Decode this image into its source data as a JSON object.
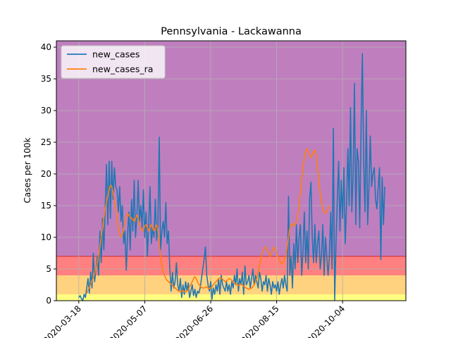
{
  "chart_data": {
    "type": "line",
    "title": "Pennsylvania - Lackawanna",
    "xlabel": "",
    "ylabel": "Cases per 100k",
    "ylim": [
      0,
      41
    ],
    "xlim": [
      "2020-03-01",
      "2020-11-21"
    ],
    "yticks": [
      0,
      5,
      10,
      15,
      20,
      25,
      30,
      35,
      40
    ],
    "xticks": [
      "2020-03-18",
      "2020-05-07",
      "2020-06-26",
      "2020-08-15",
      "2020-10-04"
    ],
    "grid": true,
    "legend": "top-left",
    "bands": [
      {
        "from": 0,
        "to": 1,
        "color": "#ffff80"
      },
      {
        "from": 1,
        "to": 4,
        "color": "#ffd27f"
      },
      {
        "from": 4,
        "to": 7,
        "color": "#ff8080"
      },
      {
        "from": 7,
        "to": 41,
        "color": "#bf7fbf"
      }
    ],
    "series": [
      {
        "name": "new_cases",
        "color": "#1f77b4",
        "start": "2020-03-18",
        "values": [
          0.5,
          0.8,
          0.3,
          0.0,
          1.0,
          0.5,
          2.0,
          3.5,
          1.2,
          4.5,
          2.0,
          7.5,
          3.0,
          5.0,
          7.0,
          4.0,
          11.0,
          6.0,
          13.0,
          8.0,
          14.5,
          21.5,
          12.0,
          22.0,
          13.0,
          22.0,
          16.0,
          21.0,
          18.0,
          17.5,
          14.0,
          18.0,
          12.5,
          15.0,
          9.0,
          11.0,
          4.8,
          10.5,
          14.0,
          8.0,
          16.0,
          11.0,
          19.0,
          10.0,
          13.0,
          19.0,
          12.5,
          15.0,
          11.5,
          17.5,
          10.0,
          14.0,
          7.0,
          12.0,
          18.0,
          9.0,
          11.5,
          10.0,
          16.0,
          9.5,
          12.0,
          25.8,
          8.0,
          11.0,
          12.5,
          10.0,
          15.5,
          9.0,
          11.0,
          5.0,
          1.5,
          4.5,
          2.0,
          3.0,
          6.0,
          2.5,
          1.5,
          3.5,
          0.5,
          2.5,
          1.0,
          3.0,
          1.5,
          2.8,
          0.5,
          1.5,
          2.5,
          0.8,
          1.8,
          0.5,
          1.5,
          1.2,
          2.0,
          3.5,
          5.0,
          6.5,
          8.5,
          4.0,
          2.5,
          1.5,
          3.0,
          0.2,
          2.0,
          1.0,
          2.5,
          1.5,
          3.5,
          1.0,
          4.0,
          2.5,
          2.0,
          1.5,
          3.0,
          1.5,
          2.5,
          1.0,
          3.0,
          2.0,
          4.0,
          2.5,
          5.0,
          1.5,
          3.5,
          2.5,
          4.5,
          1.0,
          5.5,
          2.5,
          3.0,
          4.0,
          2.0,
          3.5,
          5.0,
          2.5,
          4.0,
          3.0,
          2.0,
          4.5,
          3.5,
          1.5,
          3.0,
          2.5,
          4.0,
          1.5,
          3.5,
          2.5,
          1.0,
          3.0,
          2.0,
          2.5,
          1.5,
          3.0,
          1.0,
          2.5,
          3.5,
          2.0,
          4.0,
          2.5,
          1.5,
          16.5,
          4.0,
          7.0,
          2.0,
          9.0,
          5.0,
          12.0,
          6.0,
          10.0,
          12.0,
          4.0,
          8.0,
          14.0,
          6.0,
          11.0,
          5.0,
          16.0,
          18.7,
          10.0,
          6.0,
          12.0,
          6.0,
          9.0,
          11.0,
          5.0,
          7.0,
          12.0,
          4.0,
          10.0,
          7.0,
          4.0,
          7.0,
          14.0,
          5.0,
          27.2,
          0.1,
          9.0,
          16.0,
          22.0,
          11.0,
          19.0,
          13.0,
          21.0,
          9.0,
          15.0,
          24.0,
          15.0,
          30.5,
          14.0,
          20.0,
          34.3,
          12.0,
          24.0,
          22.0,
          11.5,
          27.0,
          39.0,
          22.0,
          14.0,
          30.0,
          12.0,
          18.0,
          26.0,
          18.0,
          20.0,
          21.0,
          16.0,
          14.5,
          18.0,
          21.0,
          6.5,
          19.5,
          12.0,
          18.0
        ]
      },
      {
        "name": "new_cases_ra",
        "color": "#ff7f0e",
        "start": "2020-03-24",
        "values": [
          1.2,
          1.6,
          2.1,
          2.6,
          3.2,
          3.6,
          4.3,
          5.0,
          6.0,
          7.2,
          8.5,
          10.0,
          11.5,
          13.0,
          14.5,
          15.5,
          16.5,
          17.5,
          18.2,
          18.0,
          17.0,
          16.0,
          14.5,
          13.0,
          11.5,
          10.5,
          10.0,
          10.5,
          11.5,
          12.5,
          13.5,
          13.8,
          13.5,
          13.2,
          13.0,
          12.8,
          12.5,
          13.0,
          13.5,
          13.0,
          12.0,
          11.5,
          11.0,
          11.2,
          11.8,
          12.0,
          11.5,
          11.0,
          11.5,
          12.0,
          11.5,
          11.0,
          11.5,
          12.0,
          11.0,
          9.0,
          7.0,
          5.5,
          4.5,
          4.0,
          3.5,
          3.2,
          3.0,
          2.8,
          2.6,
          2.4,
          2.2,
          2.0,
          1.8,
          1.6,
          1.5,
          1.4,
          1.5,
          1.6,
          1.5,
          1.4,
          1.5,
          1.8,
          2.2,
          2.6,
          3.0,
          3.5,
          3.8,
          3.5,
          3.0,
          2.6,
          2.3,
          2.1,
          2.0,
          2.0,
          2.1,
          2.2,
          2.0,
          1.9,
          2.0,
          2.2,
          2.5,
          2.8,
          3.0,
          3.2,
          3.5,
          3.6,
          3.5,
          3.4,
          3.2,
          3.0,
          3.1,
          3.3,
          3.5,
          3.4,
          3.2,
          3.0,
          2.8,
          2.6,
          2.5,
          2.4,
          2.5,
          2.6,
          2.5,
          2.3,
          2.1,
          2.0,
          1.9,
          1.8,
          1.9,
          2.0,
          2.2,
          2.5,
          3.0,
          3.5,
          4.5,
          5.5,
          6.5,
          7.5,
          8.0,
          8.5,
          8.3,
          8.0,
          7.5,
          7.0,
          7.5,
          8.0,
          8.5,
          8.0,
          7.5,
          7.0,
          6.5,
          6.0,
          5.8,
          6.0,
          6.5,
          7.0,
          8.5,
          10.0,
          11.5,
          12.0,
          12.2,
          11.8,
          12.0,
          12.5,
          13.5,
          15.0,
          17.0,
          19.0,
          21.0,
          22.5,
          23.5,
          24.0,
          23.5,
          23.0,
          22.5,
          23.0,
          23.5,
          23.8,
          23.0,
          21.0,
          19.0,
          17.0,
          15.5,
          14.5,
          14.0,
          13.8,
          14.0,
          14.5,
          15.0
        ]
      }
    ]
  }
}
